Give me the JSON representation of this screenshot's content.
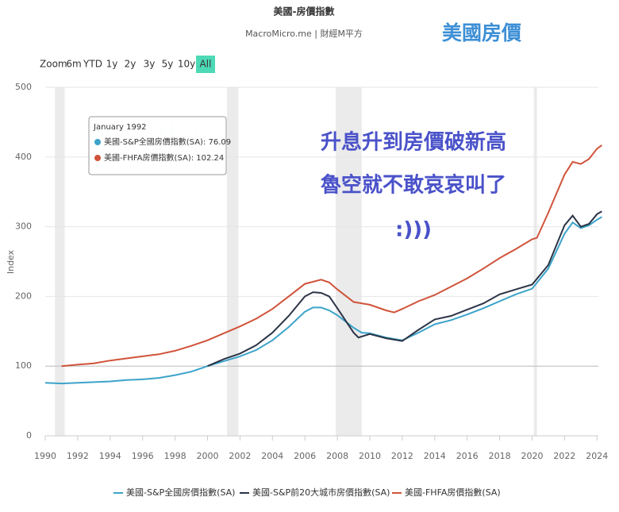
{
  "chart_data": {
    "type": "line",
    "title": "美國-房價指數",
    "subtitle": "MacroMicro.me | 財經M平方",
    "annotation": "美國房價",
    "y_label": "Index",
    "watermark": "MacroMicro",
    "zoom_label": "Zoom",
    "zoom_buttons": [
      "6m",
      "YTD",
      "1y",
      "2y",
      "3y",
      "5y",
      "10y",
      "All"
    ],
    "comment_lines": [
      "升息升到房價破新高",
      "魯空就不敢哀哀叫了",
      ":)))"
    ],
    "tooltip": {
      "date": "January 1992",
      "rows": [
        "美國-S&P全國房價指數(SA): 76.09",
        "美國-FHFA房價指數(SA): 102.24"
      ]
    },
    "xlim": [
      1990,
      2024.3
    ],
    "xticks": [
      1990,
      1992,
      1994,
      1996,
      1998,
      2000,
      2002,
      2004,
      2006,
      2008,
      2010,
      2012,
      2014,
      2016,
      2018,
      2020,
      2022,
      2024
    ],
    "ylim": [
      0,
      500
    ],
    "yticks": [
      0,
      100,
      200,
      300,
      400,
      500
    ],
    "grid": true,
    "shaded_ranges": [
      [
        1990.6,
        1991.2
      ],
      [
        2001.2,
        2001.9
      ],
      [
        2007.9,
        2009.5
      ],
      [
        2020.1,
        2020.3
      ]
    ],
    "series": [
      {
        "name": "美國-S&P全國房價指數(SA)",
        "color": "#3ca3c9",
        "x": [
          1990,
          1991,
          1992,
          1993,
          1994,
          1995,
          1996,
          1997,
          1998,
          1999,
          2000,
          2001,
          2002,
          2003,
          2004,
          2005,
          2006,
          2006.5,
          2007,
          2007.5,
          2008,
          2009,
          2009.5,
          2010,
          2011,
          2012,
          2013,
          2014,
          2015,
          2016,
          2017,
          2018,
          2019,
          2020,
          2021,
          2022,
          2022.5,
          2023,
          2023.5,
          2024,
          2024.3
        ],
        "values": [
          76,
          75,
          76,
          77,
          78,
          80,
          81,
          83,
          87,
          92,
          100,
          107,
          114,
          123,
          137,
          156,
          178,
          184,
          184,
          180,
          173,
          155,
          148,
          147,
          141,
          137,
          148,
          160,
          166,
          174,
          183,
          193,
          203,
          211,
          240,
          290,
          306,
          298,
          302,
          310,
          314
        ]
      },
      {
        "name": "美國-S&P前20大城市房價指數(SA)",
        "color": "#2c3447",
        "x": [
          2000,
          2001,
          2002,
          2003,
          2004,
          2005,
          2006,
          2006.5,
          2007,
          2007.5,
          2008,
          2009,
          2009.3,
          2010,
          2011,
          2012,
          2013,
          2014,
          2015,
          2016,
          2017,
          2018,
          2019,
          2020,
          2021,
          2022,
          2022.5,
          2023,
          2023.5,
          2024,
          2024.3
        ],
        "values": [
          100,
          110,
          118,
          130,
          148,
          172,
          200,
          206,
          205,
          200,
          183,
          148,
          141,
          146,
          140,
          136,
          152,
          167,
          172,
          181,
          190,
          203,
          210,
          217,
          245,
          302,
          316,
          300,
          304,
          318,
          322
        ]
      },
      {
        "name": "美國-FHFA房價指數(SA)",
        "color": "#d0533a",
        "x": [
          1991,
          1992,
          1993,
          1994,
          1995,
          1996,
          1997,
          1998,
          1999,
          2000,
          2001,
          2002,
          2003,
          2004,
          2005,
          2006,
          2007,
          2007.5,
          2008,
          2009,
          2010,
          2011,
          2011.5,
          2012,
          2013,
          2014,
          2015,
          2016,
          2017,
          2018,
          2019,
          2020,
          2020.3,
          2021,
          2022,
          2022.5,
          2023,
          2023.5,
          2024,
          2024.3
        ],
        "values": [
          100,
          102,
          104,
          108,
          111,
          114,
          117,
          122,
          129,
          137,
          147,
          157,
          168,
          182,
          200,
          218,
          224,
          220,
          210,
          192,
          188,
          180,
          177,
          182,
          193,
          202,
          214,
          226,
          240,
          255,
          268,
          282,
          284,
          320,
          375,
          393,
          390,
          397,
          412,
          417
        ]
      }
    ]
  }
}
